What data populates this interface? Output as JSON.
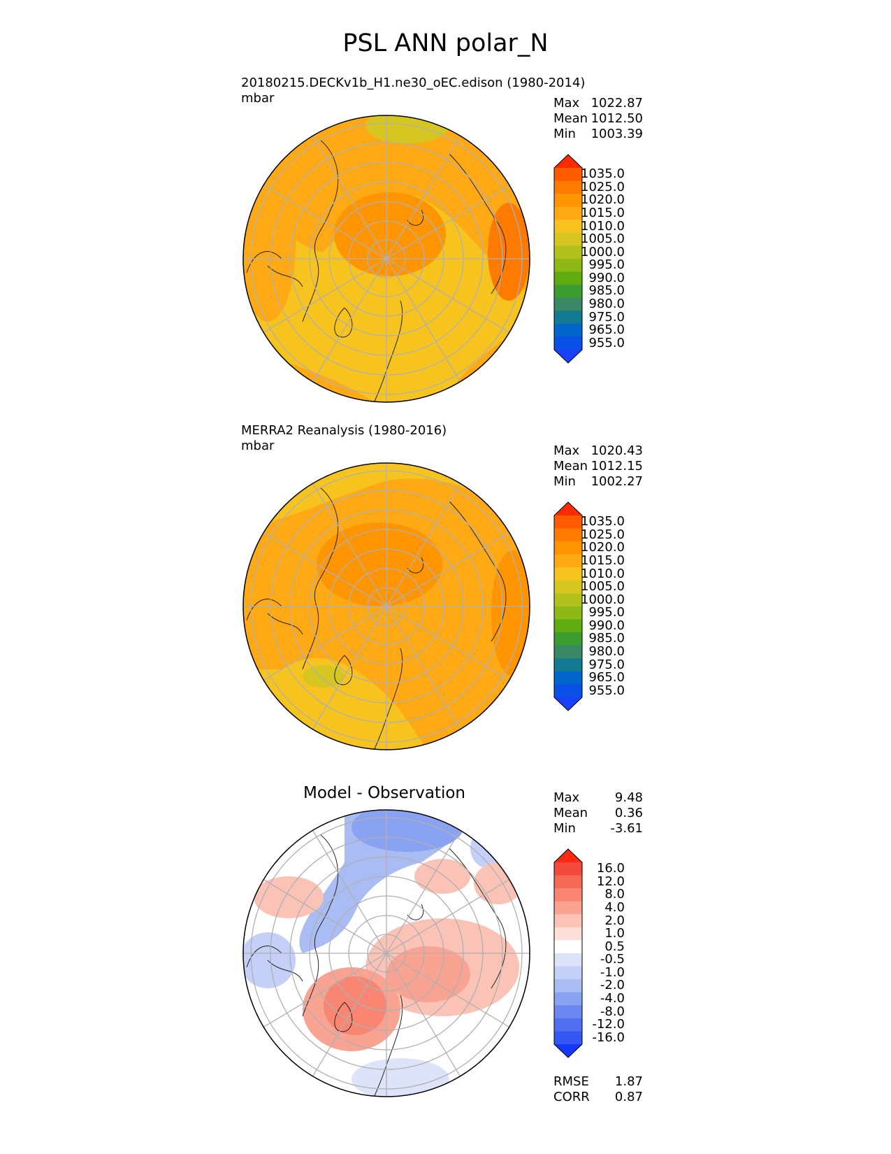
{
  "title": "PSL ANN polar_N",
  "panels": [
    {
      "name": "test",
      "label_line1": "20180215.DECKv1b_H1.ne30_oEC.edison (1980-2014)",
      "label_line2": "mbar",
      "center_title": "",
      "stats": [
        {
          "label": "Max",
          "value": "1022.87"
        },
        {
          "label": "Mean",
          "value": "1012.50"
        },
        {
          "label": "Min",
          "value": "1003.39"
        }
      ]
    },
    {
      "name": "reference",
      "label_line1": "MERRA2 Reanalysis (1980-2016)",
      "label_line2": "mbar",
      "center_title": "",
      "stats": [
        {
          "label": "Max",
          "value": "1020.43"
        },
        {
          "label": "Mean",
          "value": "1012.15"
        },
        {
          "label": "Min",
          "value": "1002.27"
        }
      ]
    },
    {
      "name": "difference",
      "label_line1": "",
      "label_line2": "",
      "center_title": "Model - Observation",
      "stats": [
        {
          "label": "Max",
          "value": "9.48"
        },
        {
          "label": "Mean",
          "value": "0.36"
        },
        {
          "label": "Min",
          "value": "-3.61"
        }
      ],
      "extra_stats": [
        {
          "label": "RMSE",
          "value": "1.87"
        },
        {
          "label": "CORR",
          "value": "0.87"
        }
      ]
    }
  ],
  "colorbars": {
    "psl": {
      "ticks": [
        "1035.0",
        "1025.0",
        "1020.0",
        "1015.0",
        "1010.0",
        "1005.0",
        "1000.0",
        "995.0",
        "990.0",
        "985.0",
        "980.0",
        "975.0",
        "965.0",
        "955.0"
      ],
      "colors": [
        "#ff2a00",
        "#ff5a00",
        "#ff7a00",
        "#ff9500",
        "#ffa915",
        "#f6c31f",
        "#d6c621",
        "#b1c21e",
        "#8db816",
        "#60aa12",
        "#3d9c2f",
        "#3a8866",
        "#157a93",
        "#0066cc",
        "#0a50e6",
        "#1840ff"
      ]
    },
    "diff": {
      "ticks": [
        "16.0",
        "12.0",
        "8.0",
        "4.0",
        "2.0",
        "1.0",
        "0.5",
        "-0.5",
        "-1.0",
        "-2.0",
        "-4.0",
        "-8.0",
        "-12.0",
        "-16.0"
      ],
      "colors": [
        "#ff2a0f",
        "#f24a3c",
        "#f56a56",
        "#f88672",
        "#f9a392",
        "#fbc2b6",
        "#fde0da",
        "#ffffff",
        "#dde4fa",
        "#c4d0f7",
        "#a9bcf4",
        "#8aa2f2",
        "#6c88f0",
        "#4f6ff0",
        "#3558f5",
        "#1438ff"
      ]
    }
  },
  "icons": {
    "land_outline": "coastline",
    "graticule": "grid-lines"
  }
}
